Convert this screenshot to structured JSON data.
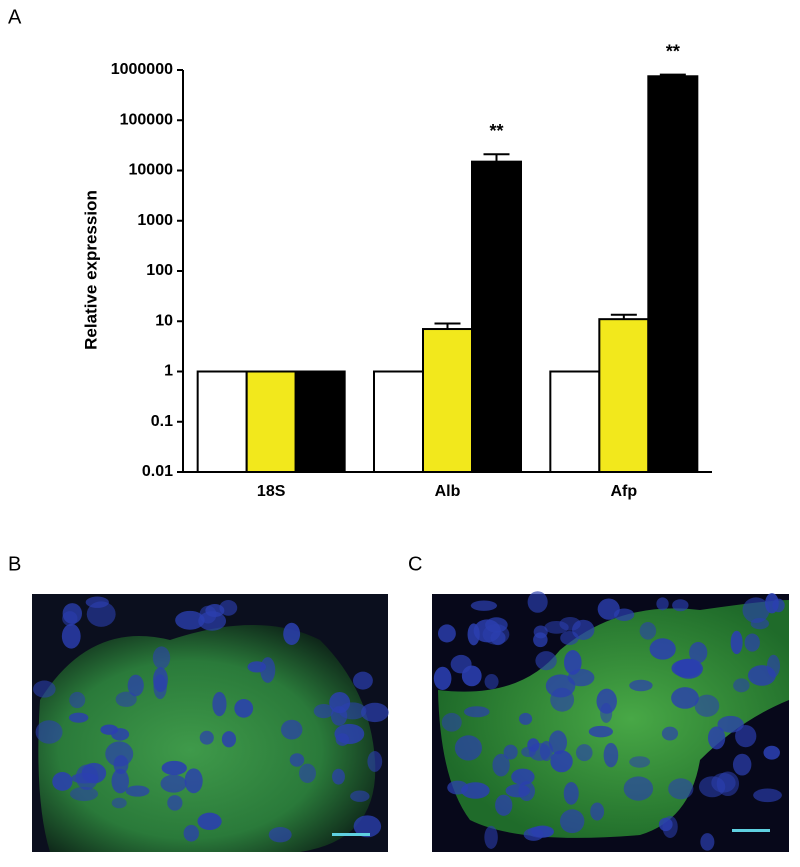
{
  "panels": [
    "A",
    "B",
    "C"
  ],
  "chart_data": {
    "type": "bar",
    "log_scale": true,
    "y_label": "Relative expression",
    "categories": [
      "18S",
      "Alb",
      "Afp"
    ],
    "series": [
      {
        "color": "#ffffff",
        "values": [
          1,
          1,
          1
        ],
        "errors": [
          null,
          null,
          null
        ]
      },
      {
        "color": "#f2e81c",
        "values": [
          1,
          7,
          11
        ],
        "errors": [
          null,
          2,
          2.5
        ]
      },
      {
        "color": "#000000",
        "values": [
          1,
          15000,
          750000
        ],
        "errors": [
          null,
          6000,
          60000
        ],
        "significance": [
          null,
          "**",
          "**"
        ]
      }
    ],
    "ylim": [
      0.01,
      1000000
    ],
    "yticks": [
      0.01,
      0.1,
      1,
      10,
      100,
      1000,
      10000,
      100000,
      1000000
    ]
  }
}
